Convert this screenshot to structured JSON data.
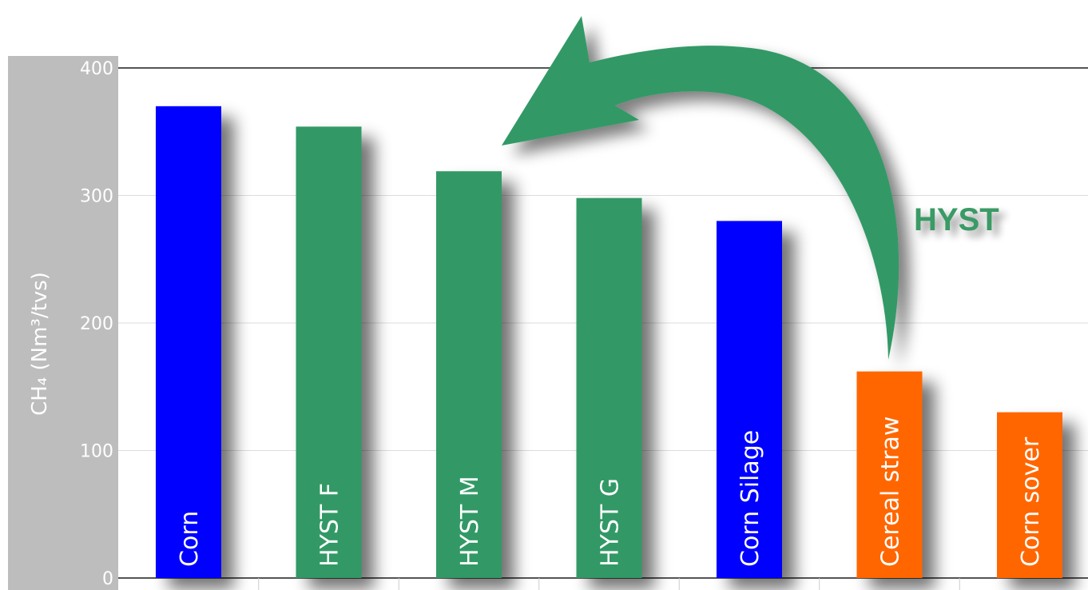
{
  "chart_data": {
    "type": "bar",
    "categories": [
      "Corn",
      "HYST  F",
      "HYST M",
      "HYST  G",
      "Corn Silage",
      "Cereal straw",
      "Corn sover"
    ],
    "values": [
      370,
      354,
      319,
      298,
      280,
      162,
      130
    ],
    "bar_colors": [
      "#0000ff",
      "#339966",
      "#339966",
      "#339966",
      "#0000ff",
      "#ff6600",
      "#ff6600"
    ],
    "title": "",
    "xlabel": "",
    "ylabel": "CH₄ (Nm³/tvs)",
    "ylim": [
      0,
      400
    ],
    "yticks": [
      0,
      100,
      200,
      300,
      400
    ],
    "grid": true,
    "annotation": {
      "text": "HYST",
      "color": "#3a9a65"
    }
  }
}
